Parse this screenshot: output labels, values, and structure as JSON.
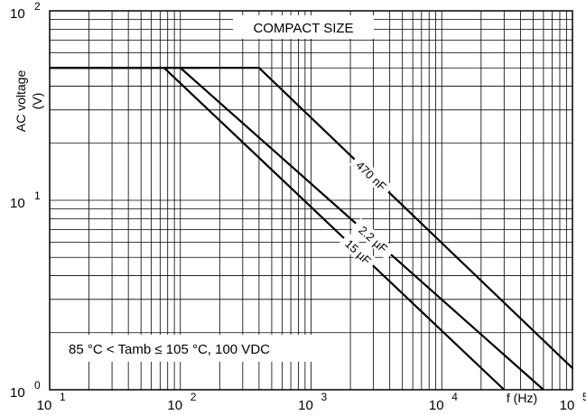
{
  "chart_data": {
    "type": "line",
    "title": "COMPACT SIZE",
    "subtitle": "",
    "xlabel": "f (Hz)",
    "ylabel": "AC voltage (V)",
    "ylabel_lines": [
      "AC voltage",
      "(V)"
    ],
    "x_scale": "log",
    "y_scale": "log",
    "xlim": [
      10,
      100000
    ],
    "ylim": [
      1,
      100
    ],
    "grid": true,
    "x_ticks": [
      {
        "value": 10,
        "base": "10",
        "exp": "1"
      },
      {
        "value": 100,
        "base": "10",
        "exp": "2"
      },
      {
        "value": 1000,
        "base": "10",
        "exp": "3"
      },
      {
        "value": 10000,
        "base": "10",
        "exp": "4"
      },
      {
        "value": 100000,
        "base": "10",
        "exp": "5"
      }
    ],
    "y_ticks": [
      {
        "value": 1,
        "base": "10",
        "exp": "0"
      },
      {
        "value": 10,
        "base": "10",
        "exp": "1"
      },
      {
        "value": 100,
        "base": "10",
        "exp": "2"
      }
    ],
    "annotation": "85 °C < Tamb  ≤ 105 °C, 100 VDC",
    "series": [
      {
        "name": "470 nF",
        "x": [
          10,
          400,
          100000
        ],
        "y": [
          50,
          50,
          1.3
        ]
      },
      {
        "name": "2.2 µF",
        "x": [
          10,
          140,
          100,
          60000
        ],
        "y": [
          50,
          50,
          50,
          1
        ]
      },
      {
        "name": "15 µF",
        "x": [
          10,
          75,
          30000
        ],
        "y": [
          50,
          50,
          1
        ]
      }
    ]
  }
}
